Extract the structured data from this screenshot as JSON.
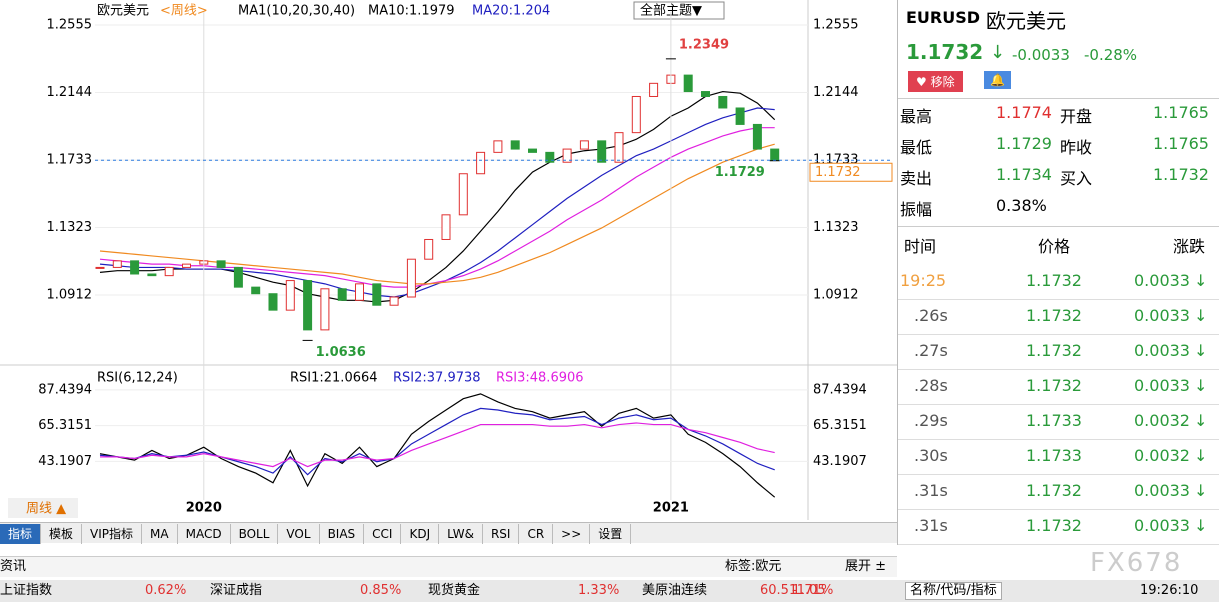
{
  "chart_data": [
    {
      "type": "candlestick",
      "title": "欧元美元",
      "period": "<周线>",
      "indicator": "MA1(10,20,30,40)",
      "indicator_values": [
        "MA10:1.1979",
        "MA20:1.204"
      ],
      "theme_button": "全部主题▼",
      "period_button": "周线 ▲",
      "categories": [
        null,
        null,
        null,
        null,
        null,
        null,
        "2020",
        null,
        null,
        null,
        null,
        null,
        null,
        null,
        null,
        null,
        null,
        null,
        null,
        null,
        null,
        null,
        null,
        null,
        null,
        null,
        null,
        null,
        null,
        null,
        null,
        null,
        null,
        "2021",
        null,
        null,
        null,
        null,
        null,
        null
      ],
      "closes": [
        1.108,
        1.112,
        1.104,
        1.103,
        1.108,
        1.11,
        1.112,
        1.108,
        1.096,
        1.092,
        1.082,
        1.1,
        1.07,
        1.095,
        1.088,
        1.098,
        1.085,
        1.09,
        1.113,
        1.125,
        1.14,
        1.165,
        1.178,
        1.185,
        1.18,
        1.178,
        1.172,
        1.18,
        1.185,
        1.172,
        1.19,
        1.212,
        1.22,
        1.225,
        1.215,
        1.212,
        1.205,
        1.195,
        1.18,
        1.1732
      ],
      "up_color": "#e03030",
      "down_color": "#2a9a3a",
      "series": [
        {
          "color": "#000000",
          "values": [
            1.105,
            1.106,
            1.106,
            1.106,
            1.107,
            1.107,
            1.107,
            1.107,
            1.105,
            1.102,
            1.099,
            1.097,
            1.092,
            1.09,
            1.088,
            1.088,
            1.087,
            1.088,
            1.093,
            1.1,
            1.108,
            1.118,
            1.13,
            1.142,
            1.155,
            1.166,
            1.172,
            1.177,
            1.179,
            1.18,
            1.182,
            1.186,
            1.192,
            1.2,
            1.205,
            1.212,
            1.215,
            1.214,
            1.208,
            1.1979
          ]
        },
        {
          "color": "#2020c0",
          "values": [
            1.11,
            1.109,
            1.108,
            1.108,
            1.108,
            1.107,
            1.107,
            1.107,
            1.106,
            1.105,
            1.104,
            1.102,
            1.1,
            1.098,
            1.095,
            1.093,
            1.091,
            1.09,
            1.092,
            1.096,
            1.1,
            1.105,
            1.111,
            1.118,
            1.126,
            1.134,
            1.142,
            1.15,
            1.157,
            1.164,
            1.17,
            1.176,
            1.18,
            1.185,
            1.19,
            1.195,
            1.199,
            1.202,
            1.205,
            1.204
          ]
        },
        {
          "color": "#e020e0",
          "values": [
            1.113,
            1.112,
            1.111,
            1.11,
            1.11,
            1.109,
            1.109,
            1.108,
            1.108,
            1.107,
            1.106,
            1.105,
            1.104,
            1.103,
            1.101,
            1.099,
            1.097,
            1.096,
            1.096,
            1.098,
            1.1,
            1.103,
            1.107,
            1.112,
            1.118,
            1.124,
            1.13,
            1.137,
            1.143,
            1.149,
            1.156,
            1.163,
            1.169,
            1.175,
            1.18,
            1.184,
            1.188,
            1.191,
            1.193,
            1.193
          ]
        },
        {
          "color": "#f08a20",
          "values": [
            1.118,
            1.117,
            1.116,
            1.115,
            1.114,
            1.113,
            1.112,
            1.111,
            1.11,
            1.109,
            1.108,
            1.107,
            1.106,
            1.105,
            1.104,
            1.102,
            1.1,
            1.099,
            1.098,
            1.098,
            1.099,
            1.1,
            1.102,
            1.105,
            1.109,
            1.113,
            1.117,
            1.122,
            1.127,
            1.132,
            1.138,
            1.144,
            1.15,
            1.156,
            1.162,
            1.167,
            1.172,
            1.176,
            1.18,
            1.183
          ]
        }
      ],
      "ylim": [
        1.0608,
        1.2634
      ],
      "yticks": [
        1.0912,
        1.1323,
        1.1733,
        1.2144,
        1.2555
      ],
      "annotations": [
        {
          "index": 33,
          "value": 1.2349,
          "color": "#e04040"
        },
        {
          "index": 12,
          "value": 1.0636,
          "color": "#2a9a3a"
        },
        {
          "index": 39,
          "value": 1.1729,
          "color": "#2a9a3a"
        }
      ],
      "last_price": 1.1732
    },
    {
      "type": "line",
      "title": "RSI(6,12,24)",
      "series": [
        {
          "name": "RSI1:21.0664",
          "color": "#000000",
          "values": [
            48,
            46,
            44,
            50,
            45,
            47,
            52,
            45,
            40,
            36,
            30,
            50,
            28,
            48,
            42,
            52,
            40,
            45,
            60,
            68,
            75,
            82,
            85,
            80,
            76,
            74,
            70,
            72,
            74,
            65,
            73,
            76,
            70,
            72,
            60,
            55,
            48,
            40,
            30,
            21.0664
          ]
        },
        {
          "name": "RSI2:37.9738",
          "color": "#2020c0",
          "values": [
            47,
            46,
            45,
            48,
            46,
            47,
            49,
            46,
            43,
            40,
            36,
            46,
            35,
            45,
            43,
            48,
            43,
            45,
            54,
            60,
            66,
            72,
            76,
            75,
            73,
            72,
            69,
            70,
            71,
            66,
            70,
            72,
            69,
            70,
            63,
            59,
            54,
            48,
            42,
            37.9738
          ]
        },
        {
          "name": "RSI3:48.6906",
          "color": "#e020e0",
          "values": [
            46,
            46,
            45,
            47,
            46,
            46,
            48,
            46,
            44,
            42,
            40,
            45,
            40,
            44,
            44,
            46,
            44,
            45,
            50,
            54,
            58,
            62,
            66,
            66,
            66,
            66,
            65,
            65,
            66,
            64,
            66,
            67,
            66,
            66,
            63,
            61,
            58,
            55,
            51,
            48.6906
          ]
        }
      ],
      "ylim": [
        19.33,
        93.58
      ],
      "yticks": [
        43.1907,
        65.3151,
        87.4394
      ]
    }
  ],
  "tabs": [
    "指标",
    "模板",
    "VIP指标",
    "MA",
    "MACD",
    "BOLL",
    "VOL",
    "BIAS",
    "CCI",
    "KDJ",
    "LW&",
    "RSI",
    "CR",
    ">>",
    "设置"
  ],
  "news_bar": {
    "title": "资讯",
    "tag": "标签:欧元",
    "expand": "展开 ±"
  },
  "ticker": [
    [
      "上证指数",
      "0.62%"
    ],
    [
      "深证成指",
      "0.85%"
    ],
    [
      "现货黄金",
      "1.33%"
    ],
    [
      "美原油连续",
      "60.51",
      "-1.05",
      "1.71%"
    ]
  ],
  "search": "名称/代码/指标",
  "clock": "19:26:10",
  "brand": "FX678",
  "quote": {
    "symbol": "EURUSD",
    "name": "欧元美元",
    "price": "1.1732",
    "change": "-0.0033",
    "change_pct": "-0.28%",
    "remove": "移除",
    "grid": [
      [
        "最高",
        "1.1774",
        "开盘",
        "1.1765"
      ],
      [
        "最低",
        "1.1729",
        "昨收",
        "1.1765"
      ],
      [
        "卖出",
        "1.1734",
        "买入",
        "1.1732"
      ],
      [
        "振幅",
        "0.38%"
      ]
    ],
    "trade_header": [
      "时间",
      "价格",
      "涨跌"
    ],
    "trades": [
      [
        "19:25",
        "1.1732",
        "0.0033"
      ],
      [
        ".26s",
        "1.1732",
        "0.0033"
      ],
      [
        ".27s",
        "1.1732",
        "0.0033"
      ],
      [
        ".28s",
        "1.1732",
        "0.0033"
      ],
      [
        ".29s",
        "1.1733",
        "0.0032"
      ],
      [
        ".30s",
        "1.1733",
        "0.0032"
      ],
      [
        ".31s",
        "1.1732",
        "0.0033"
      ],
      [
        ".31s",
        "1.1732",
        "0.0033"
      ]
    ]
  }
}
